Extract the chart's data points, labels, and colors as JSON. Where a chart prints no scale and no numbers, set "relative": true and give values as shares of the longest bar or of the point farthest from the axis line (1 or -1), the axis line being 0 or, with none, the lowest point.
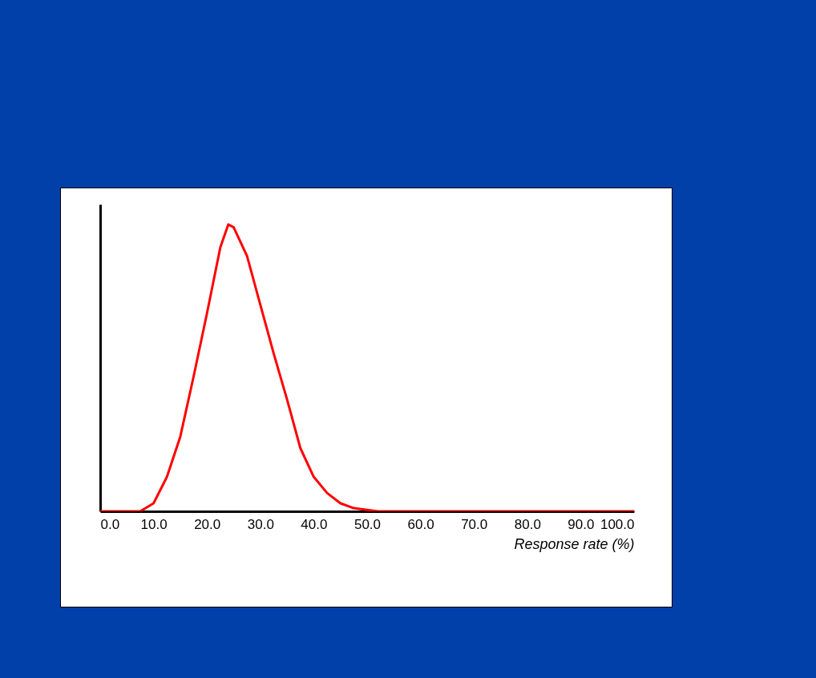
{
  "chart_data": {
    "type": "line",
    "xlabel": "Response rate (%)",
    "relative": true,
    "x": [
      0,
      5,
      7.5,
      10,
      12.5,
      15,
      17.5,
      20,
      22.5,
      24,
      25,
      27.5,
      30,
      32.5,
      35,
      37.5,
      40,
      42.5,
      45,
      47.5,
      50,
      52,
      60,
      70,
      80,
      90,
      100
    ],
    "series": [
      {
        "color": "#ff0000",
        "values": [
          0,
          0,
          0,
          0.028,
          0.12,
          0.26,
          0.47,
          0.69,
          0.92,
          1,
          0.99,
          0.89,
          0.72,
          0.55,
          0.39,
          0.22,
          0.12,
          0.064,
          0.028,
          0.011,
          0.005,
          0,
          0,
          0,
          0,
          0,
          0
        ]
      }
    ],
    "xlim": [
      0,
      100
    ],
    "xticks": [
      {
        "value": 0,
        "label": "0.0"
      },
      {
        "value": 10,
        "label": "10.0"
      },
      {
        "value": 20,
        "label": "20.0"
      },
      {
        "value": 30,
        "label": "30.0"
      },
      {
        "value": 40,
        "label": "40.0"
      },
      {
        "value": 50,
        "label": "50.0"
      },
      {
        "value": 60,
        "label": "60.0"
      },
      {
        "value": 70,
        "label": "70.0"
      },
      {
        "value": 80,
        "label": "80.0"
      },
      {
        "value": 90,
        "label": "90.0"
      },
      {
        "value": 100,
        "label": "100.0"
      }
    ],
    "grid": false
  }
}
